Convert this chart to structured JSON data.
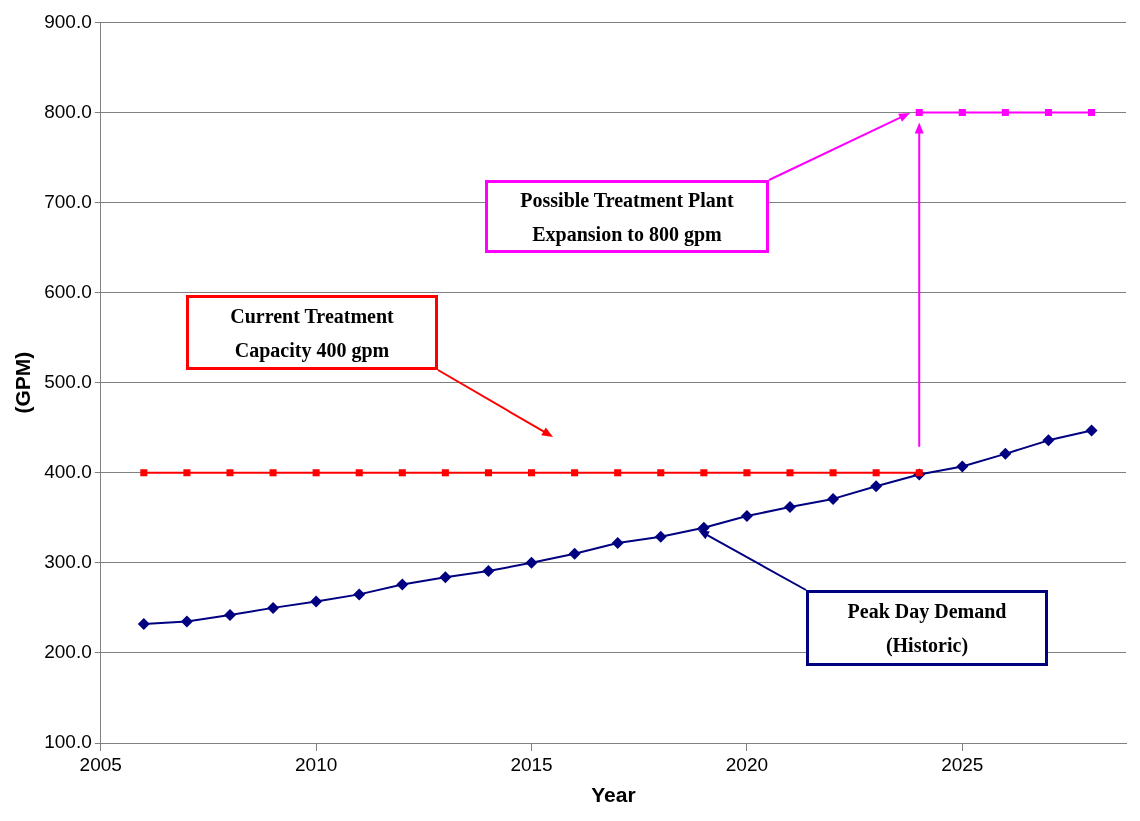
{
  "chart_data": {
    "type": "line",
    "xlabel": "Year",
    "ylabel": "(GPM)",
    "xlim": [
      2005,
      2028.8
    ],
    "xticks": [
      2005,
      2010,
      2015,
      2020,
      2025
    ],
    "ylim": [
      100,
      900
    ],
    "yticks": [
      {
        "value": 100,
        "label": "100.0"
      },
      {
        "value": 200,
        "label": "200.0"
      },
      {
        "value": 300,
        "label": "300.0"
      },
      {
        "value": 400,
        "label": "400.0"
      },
      {
        "value": 500,
        "label": "500.0"
      },
      {
        "value": 600,
        "label": "600.0"
      },
      {
        "value": 700,
        "label": "700.0"
      },
      {
        "value": 800,
        "label": "800.0"
      },
      {
        "value": 900,
        "label": "900.0"
      }
    ],
    "grid": "y",
    "legend": false,
    "series": [
      {
        "color": "#000080",
        "marker": "diamond",
        "x": [
          2006,
          2007,
          2008,
          2009,
          2010,
          2011,
          2012,
          2013,
          2014,
          2015,
          2016,
          2017,
          2018,
          2019,
          2020,
          2021,
          2022,
          2023,
          2024,
          2025,
          2026,
          2027,
          2028
        ],
        "values": [
          232,
          235,
          242,
          250,
          257,
          265,
          276,
          284,
          291,
          300,
          310,
          322,
          329,
          339,
          352,
          362,
          371,
          385,
          398,
          407,
          421,
          436,
          447
        ]
      },
      {
        "color": "#ff0000",
        "marker": "square",
        "x": [
          2006,
          2007,
          2008,
          2009,
          2010,
          2011,
          2012,
          2013,
          2014,
          2015,
          2016,
          2017,
          2018,
          2019,
          2020,
          2021,
          2022,
          2023,
          2024
        ],
        "values": [
          400,
          400,
          400,
          400,
          400,
          400,
          400,
          400,
          400,
          400,
          400,
          400,
          400,
          400,
          400,
          400,
          400,
          400,
          400
        ]
      },
      {
        "color": "#ff00ff",
        "marker": "square",
        "x": [
          2024,
          2025,
          2026,
          2027,
          2028
        ],
        "values": [
          800,
          800,
          800,
          800,
          800
        ]
      }
    ],
    "annotations": [
      "Peak Day Demand\n(Historic)",
      "Current Treatment\nCapacity 400 gpm",
      "Possible Treatment Plant\nExpansion to 800 gpm"
    ]
  }
}
